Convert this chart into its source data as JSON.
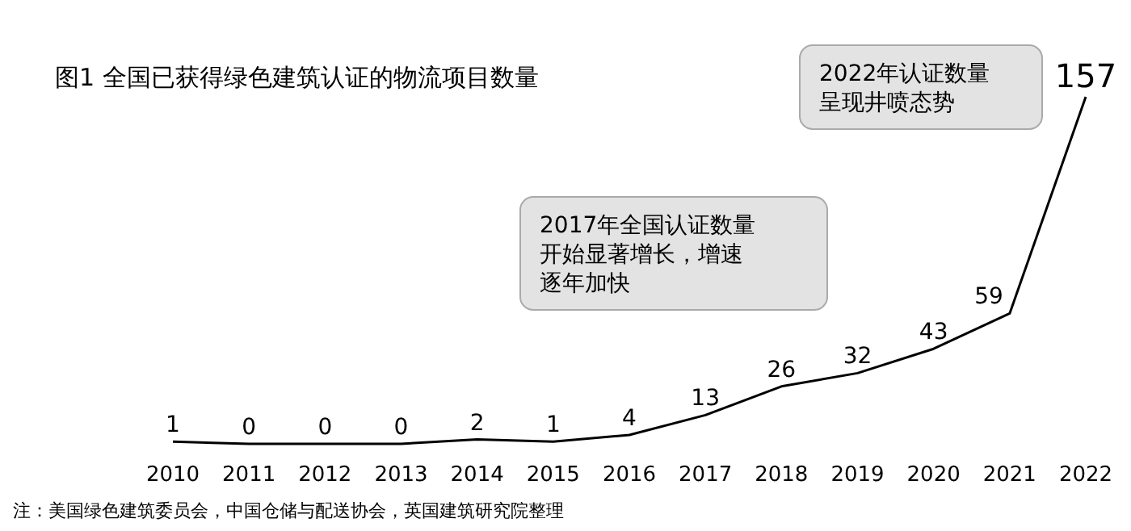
{
  "chart_data": {
    "type": "line",
    "title": "图1 全国已获得绿色建筑认证的物流项目数量",
    "categories": [
      "2010",
      "2011",
      "2012",
      "2013",
      "2014",
      "2015",
      "2016",
      "2017",
      "2018",
      "2019",
      "2020",
      "2021",
      "2022"
    ],
    "series": [
      {
        "color": "#000000",
        "values": [
          1,
          0,
          0,
          0,
          2,
          1,
          4,
          13,
          26,
          32,
          43,
          59,
          157
        ]
      }
    ],
    "data_labels": true,
    "marker": "none",
    "line_style": "solid",
    "annotations": [
      "2022年认证数量呈现井喷态势",
      "2017年全国认证数量开始显著增长，增速逐年加快",
      "注：美国绿色建筑委员会，中国仓储与配送协会，英国建筑研究院整理"
    ]
  }
}
